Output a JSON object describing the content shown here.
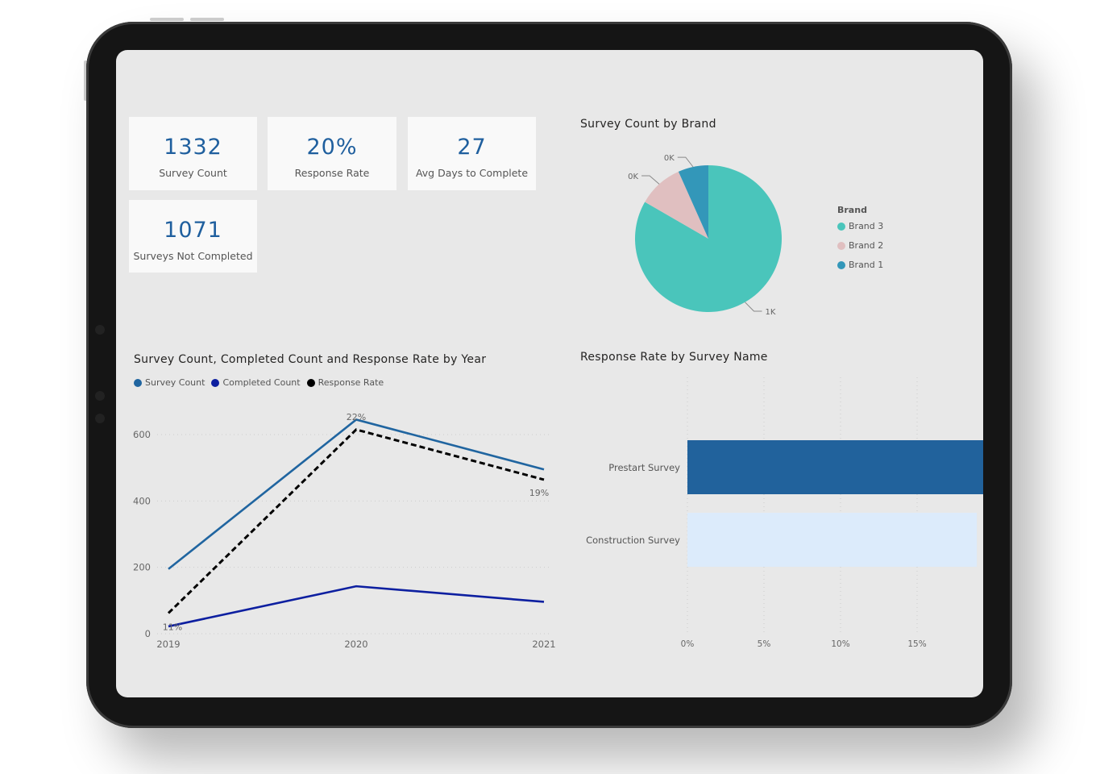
{
  "kpis": [
    {
      "value": "1332",
      "label": "Survey Count"
    },
    {
      "value": "20%",
      "label": "Response Rate"
    },
    {
      "value": "27",
      "label": "Avg Days to Complete"
    },
    {
      "value": "1071",
      "label": "Surveys Not Completed"
    }
  ],
  "colors": {
    "accent": "#1f5f9e",
    "survey_count": "#2065a0",
    "completed_count": "#0d1fa0",
    "response_rate": "#000000",
    "brand3": "#4ac5bb",
    "brand2": "#e0bfc0",
    "brand1": "#3397b9",
    "bar_prestart": "#21629c",
    "bar_construction": "#dcebfb"
  },
  "chart_data": [
    {
      "type": "pie",
      "title": "Survey Count by Brand",
      "legend_title": "Brand",
      "legend_placement": "right",
      "slices": [
        {
          "name": "Brand 3",
          "value": 1110,
          "label": "1K"
        },
        {
          "name": "Brand 2",
          "value": 133,
          "label": "0K"
        },
        {
          "name": "Brand 1",
          "value": 89,
          "label": "0K"
        }
      ]
    },
    {
      "type": "line",
      "title": "Survey Count, Completed Count and Response Rate by Year",
      "legend_placement": "top-left",
      "categories": [
        "2019",
        "2020",
        "2021"
      ],
      "ylim": [
        0,
        650
      ],
      "yticks": [
        "0",
        "200",
        "400",
        "600"
      ],
      "grid": true,
      "series": [
        {
          "name": "Survey Count",
          "values": [
            195,
            645,
            495
          ]
        },
        {
          "name": "Completed Count",
          "values": [
            22,
            143,
            96
          ]
        },
        {
          "name": "Response Rate",
          "values": [
            0.11,
            0.22,
            0.19
          ],
          "labels": [
            "11%",
            "22%",
            "19%"
          ],
          "axis": "secondary",
          "dashed": true
        }
      ]
    },
    {
      "type": "bar",
      "orientation": "horizontal",
      "title": "Response Rate by Survey Name",
      "categories": [
        "Prestart Survey",
        "Construction Survey"
      ],
      "values": [
        20,
        18.9
      ],
      "xticks": [
        "0%",
        "5%",
        "10%",
        "15%"
      ],
      "grid": true
    }
  ]
}
